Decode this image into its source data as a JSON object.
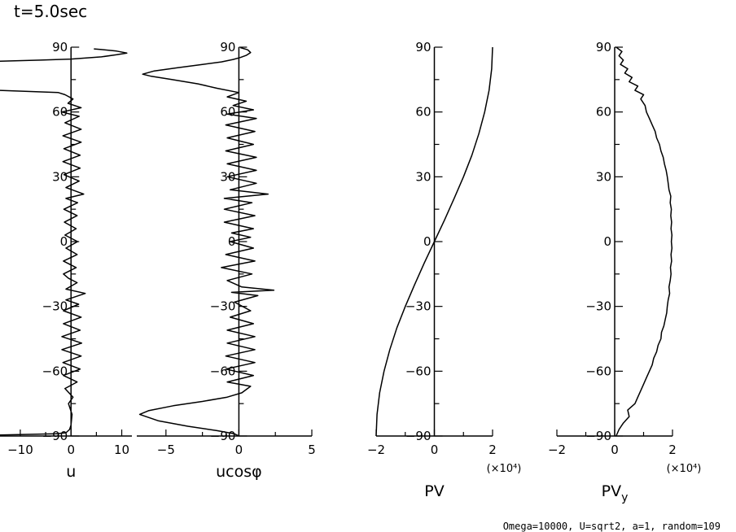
{
  "title": "t=5.0sec",
  "footer": "Omega=10000, U=sqrt2, a=1, random=109",
  "chart_data": [
    {
      "id": "u",
      "type": "line",
      "xlabel": "u",
      "ylabel": "",
      "xlim": [
        -14,
        12
      ],
      "ylim": [
        -90,
        90
      ],
      "xticks": [
        -10,
        0,
        10
      ],
      "xtick_labels": [
        "-10",
        "0",
        "10"
      ],
      "yticks": [
        -90,
        -60,
        -30,
        0,
        30,
        60,
        90
      ],
      "ytick_labels": [
        "-90",
        "-60",
        "-30",
        "0",
        "30",
        "60",
        "90"
      ],
      "multiplier": "",
      "series": [
        {
          "values": [
            [
              -14,
              -89.5
            ],
            [
              -3,
              -89
            ],
            [
              -1,
              -88.5
            ],
            [
              -0.3,
              -87
            ],
            [
              0,
              -85
            ],
            [
              0.2,
              -80
            ],
            [
              -0.5,
              -75
            ],
            [
              0.4,
              -72
            ],
            [
              -1.2,
              -68
            ],
            [
              1.2,
              -65
            ],
            [
              -1.5,
              -62
            ],
            [
              1.8,
              -59
            ],
            [
              -1.6,
              -56
            ],
            [
              2.0,
              -53
            ],
            [
              -1.8,
              -50
            ],
            [
              2.1,
              -47
            ],
            [
              -1.8,
              -44
            ],
            [
              1.8,
              -41
            ],
            [
              -1.5,
              -38
            ],
            [
              2.0,
              -35
            ],
            [
              -1.5,
              -32
            ],
            [
              1.5,
              -29
            ],
            [
              -1.0,
              -27
            ],
            [
              2.8,
              -24
            ],
            [
              -1.0,
              -22
            ],
            [
              1.2,
              -19
            ],
            [
              -0.5,
              -17
            ],
            [
              -1.5,
              -15
            ],
            [
              1.0,
              -12
            ],
            [
              -1.5,
              -9
            ],
            [
              1.2,
              -6
            ],
            [
              -1.0,
              -3
            ],
            [
              1.3,
              0
            ],
            [
              -1.2,
              3
            ],
            [
              1.0,
              6
            ],
            [
              -1.3,
              9
            ],
            [
              1.2,
              12
            ],
            [
              -1.4,
              15
            ],
            [
              1.3,
              18
            ],
            [
              -1.0,
              20
            ],
            [
              2.5,
              22
            ],
            [
              -1.0,
              25
            ],
            [
              1.6,
              28
            ],
            [
              -1.4,
              31
            ],
            [
              1.8,
              34
            ],
            [
              -1.6,
              37
            ],
            [
              1.8,
              40
            ],
            [
              -1.4,
              43
            ],
            [
              2.0,
              46
            ],
            [
              -1.6,
              49
            ],
            [
              2.0,
              52
            ],
            [
              -1.2,
              55
            ],
            [
              1.6,
              58
            ],
            [
              -1.8,
              60
            ],
            [
              2.0,
              62
            ],
            [
              -0.6,
              64
            ],
            [
              0.4,
              66
            ],
            [
              -1.2,
              68
            ],
            [
              -2.5,
              69
            ],
            [
              -14,
              70
            ]
          ]
        },
        {
          "values": [
            [
              -14,
              83.5
            ],
            [
              -6,
              84
            ],
            [
              0,
              84.5
            ],
            [
              6,
              85.5
            ],
            [
              9,
              86.5
            ],
            [
              11,
              87.3
            ],
            [
              9,
              88.2
            ],
            [
              6,
              88.9
            ],
            [
              4.5,
              89.2
            ]
          ]
        }
      ]
    },
    {
      "id": "ucos",
      "type": "line",
      "xlabel": "ucosφ",
      "ylabel": "",
      "xlim": [
        -7,
        5
      ],
      "ylim": [
        -90,
        90
      ],
      "xticks": [
        -5,
        0,
        5
      ],
      "xtick_labels": [
        "-5",
        "0",
        "5"
      ],
      "yticks": [
        -90,
        -60,
        -30,
        0,
        30,
        60,
        90
      ],
      "ytick_labels": [
        "-90",
        "-60",
        "-30",
        "0",
        "30",
        "60",
        "90"
      ],
      "multiplier": "",
      "series": [
        {
          "values": [
            [
              -0.05,
              -89.8
            ],
            [
              -0.3,
              -89
            ],
            [
              -1.5,
              -87.5
            ],
            [
              -3.5,
              -85.5
            ],
            [
              -5.5,
              -83
            ],
            [
              -6.8,
              -80
            ],
            [
              -6.2,
              -78.3
            ],
            [
              -4.5,
              -76
            ],
            [
              -2.5,
              -74
            ],
            [
              -0.8,
              -72
            ],
            [
              0.2,
              -70
            ],
            [
              0.8,
              -67
            ],
            [
              -0.8,
              -65
            ],
            [
              1.0,
              -62
            ],
            [
              -0.9,
              -59
            ],
            [
              1.1,
              -56
            ],
            [
              -0.9,
              -53
            ],
            [
              1.1,
              -50
            ],
            [
              -0.8,
              -47
            ],
            [
              1.1,
              -44
            ],
            [
              -0.8,
              -41
            ],
            [
              1.0,
              -38
            ],
            [
              -0.6,
              -35
            ],
            [
              0.8,
              -32
            ],
            [
              -0.3,
              -28
            ],
            [
              1.3,
              -25
            ],
            [
              -0.5,
              -23.5
            ],
            [
              2.4,
              -22.5
            ],
            [
              0.2,
              -21
            ],
            [
              -0.8,
              -18
            ],
            [
              0.9,
              -15
            ],
            [
              -1.2,
              -12
            ],
            [
              1.1,
              -9
            ],
            [
              -0.9,
              -6
            ],
            [
              1.0,
              -3
            ],
            [
              -0.6,
              0
            ],
            [
              0.8,
              2
            ],
            [
              -0.5,
              4
            ],
            [
              1.0,
              6
            ],
            [
              -1.0,
              9
            ],
            [
              1.1,
              12
            ],
            [
              -1.0,
              15
            ],
            [
              0.9,
              18
            ],
            [
              -1.0,
              20
            ],
            [
              2.0,
              22
            ],
            [
              -0.6,
              24
            ],
            [
              1.2,
              27
            ],
            [
              -0.8,
              30
            ],
            [
              1.2,
              33
            ],
            [
              -0.8,
              36
            ],
            [
              1.2,
              39
            ],
            [
              -0.9,
              42
            ],
            [
              1.0,
              45
            ],
            [
              -0.8,
              48
            ],
            [
              1.1,
              51
            ],
            [
              -0.9,
              54
            ],
            [
              1.2,
              57
            ],
            [
              -0.8,
              59
            ],
            [
              1.0,
              61
            ],
            [
              -0.4,
              63
            ],
            [
              0.5,
              65
            ],
            [
              -0.8,
              67
            ],
            [
              0,
              69
            ],
            [
              -1.5,
              71
            ],
            [
              -2.8,
              73
            ],
            [
              -4.6,
              75
            ],
            [
              -6.0,
              76.5
            ],
            [
              -6.6,
              77.5
            ],
            [
              -5.8,
              79
            ],
            [
              -4.2,
              80.5
            ],
            [
              -2.5,
              82
            ],
            [
              -1.2,
              83.2
            ],
            [
              -0.4,
              84.3
            ],
            [
              0.1,
              85.2
            ],
            [
              0.5,
              86.2
            ],
            [
              0.8,
              87.5
            ],
            [
              0.6,
              88.8
            ],
            [
              0.1,
              89.8
            ]
          ]
        }
      ]
    },
    {
      "id": "pv",
      "type": "line",
      "xlabel": "PV",
      "ylabel": "",
      "xlim": [
        -2,
        2
      ],
      "ylim": [
        -90,
        90
      ],
      "xticks": [
        -2,
        0,
        2
      ],
      "xtick_labels": [
        "-2",
        "0",
        "2"
      ],
      "yticks": [
        -90,
        -60,
        -30,
        0,
        30,
        60,
        90
      ],
      "ytick_labels": [
        "-90",
        "-60",
        "-30",
        "0",
        "30",
        "60",
        "90"
      ],
      "multiplier": "(×10⁴)",
      "series": [
        {
          "values": [
            [
              -2.0,
              -90
            ],
            [
              -1.97,
              -80
            ],
            [
              -1.88,
              -70
            ],
            [
              -1.73,
              -60
            ],
            [
              -1.53,
              -50
            ],
            [
              -1.29,
              -40
            ],
            [
              -1.0,
              -30
            ],
            [
              -0.68,
              -20
            ],
            [
              -0.35,
              -10
            ],
            [
              0,
              0
            ],
            [
              0.35,
              10
            ],
            [
              0.68,
              20
            ],
            [
              1.0,
              30
            ],
            [
              1.29,
              40
            ],
            [
              1.53,
              50
            ],
            [
              1.73,
              60
            ],
            [
              1.88,
              70
            ],
            [
              1.97,
              80
            ],
            [
              2.0,
              90
            ]
          ]
        }
      ]
    },
    {
      "id": "pvy",
      "type": "line",
      "xlabel": "PV",
      "xlabel_subscript": "y",
      "ylabel": "",
      "xlim": [
        -2,
        2
      ],
      "ylim": [
        -90,
        90
      ],
      "xticks": [
        -2,
        0,
        2
      ],
      "xtick_labels": [
        "-2",
        "0",
        "2"
      ],
      "yticks": [
        -90,
        -60,
        -30,
        0,
        30,
        60,
        90
      ],
      "ytick_labels": [
        "-90",
        "-60",
        "-30",
        "0",
        "30",
        "60",
        "90"
      ],
      "multiplier": "(×10⁴)",
      "series": [
        {
          "values": [
            [
              0.05,
              -90
            ],
            [
              0.15,
              -87
            ],
            [
              0.3,
              -84
            ],
            [
              0.5,
              -81
            ],
            [
              0.45,
              -78
            ],
            [
              0.7,
              -75
            ],
            [
              0.8,
              -72
            ],
            [
              0.9,
              -69
            ],
            [
              1.0,
              -66
            ],
            [
              1.1,
              -63
            ],
            [
              1.2,
              -60
            ],
            [
              1.3,
              -57
            ],
            [
              1.35,
              -54
            ],
            [
              1.45,
              -51
            ],
            [
              1.5,
              -48
            ],
            [
              1.6,
              -45
            ],
            [
              1.62,
              -42
            ],
            [
              1.7,
              -39
            ],
            [
              1.75,
              -36
            ],
            [
              1.8,
              -33
            ],
            [
              1.82,
              -30
            ],
            [
              1.85,
              -27
            ],
            [
              1.9,
              -24
            ],
            [
              1.88,
              -21
            ],
            [
              1.92,
              -18
            ],
            [
              1.95,
              -15
            ],
            [
              1.93,
              -12
            ],
            [
              1.97,
              -9
            ],
            [
              1.95,
              -6
            ],
            [
              1.98,
              -3
            ],
            [
              1.96,
              0
            ],
            [
              1.98,
              3
            ],
            [
              1.95,
              6
            ],
            [
              1.97,
              9
            ],
            [
              1.94,
              12
            ],
            [
              1.96,
              15
            ],
            [
              1.92,
              18
            ],
            [
              1.94,
              21
            ],
            [
              1.88,
              24
            ],
            [
              1.85,
              27
            ],
            [
              1.82,
              30
            ],
            [
              1.78,
              33
            ],
            [
              1.72,
              36
            ],
            [
              1.68,
              39
            ],
            [
              1.6,
              42
            ],
            [
              1.55,
              45
            ],
            [
              1.45,
              48
            ],
            [
              1.4,
              51
            ],
            [
              1.3,
              54
            ],
            [
              1.2,
              57
            ],
            [
              1.1,
              60
            ],
            [
              1.05,
              63
            ],
            [
              0.9,
              66
            ],
            [
              1.0,
              68
            ],
            [
              0.7,
              70
            ],
            [
              0.8,
              72
            ],
            [
              0.5,
              74
            ],
            [
              0.6,
              76
            ],
            [
              0.35,
              78
            ],
            [
              0.45,
              80
            ],
            [
              0.2,
              82
            ],
            [
              0.3,
              84
            ],
            [
              0.15,
              86
            ],
            [
              0.25,
              88
            ],
            [
              0.05,
              90
            ]
          ]
        }
      ]
    }
  ]
}
